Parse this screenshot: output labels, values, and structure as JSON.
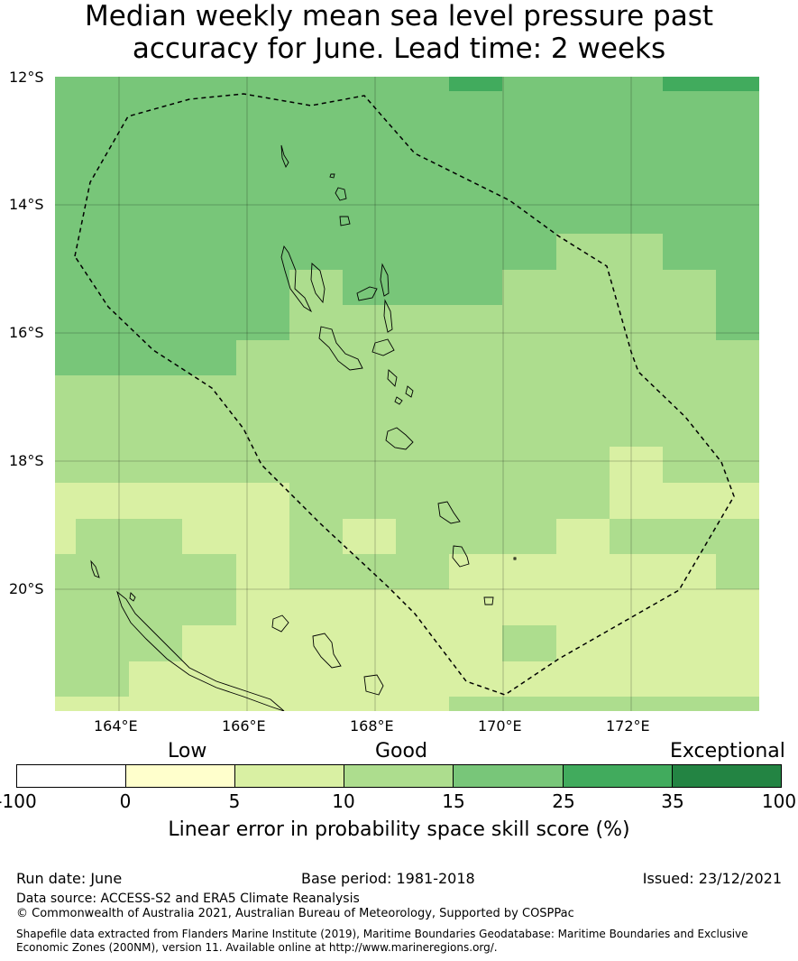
{
  "title": {
    "line1": "Median weekly mean sea level pressure past",
    "line2": "accuracy for June. Lead time: 2 weeks"
  },
  "map": {
    "lat_labels": [
      "12°S",
      "14°S",
      "16°S",
      "18°S",
      "20°S"
    ],
    "lon_labels": [
      "164°E",
      "166°E",
      "168°E",
      "170°E",
      "172°E"
    ],
    "boundary_style": "dashed",
    "grid": true
  },
  "legend": {
    "category_low": "Low",
    "category_good": "Good",
    "category_exceptional": "Exceptional",
    "ticks": [
      "-100",
      "0",
      "5",
      "10",
      "15",
      "25",
      "35",
      "100"
    ],
    "colors": [
      "#ffffff",
      "#ffffcc",
      "#d9f0a3",
      "#addd8e",
      "#78c679",
      "#41ab5d",
      "#238443"
    ],
    "caption": "Linear error in probability space skill score (%)"
  },
  "footer": {
    "run_date": "Run date: June",
    "base_period": "Base period: 1981-2018",
    "issued": "Issued: 23/12/2021",
    "data_source": "Data source: ACCESS-S2 and ERA5 Climate Reanalysis",
    "copyright": "© Commonwealth of Australia 2021, Australian Bureau of Meteorology, Supported by COSPPac",
    "shapefile_line1": "Shapefile data extracted from Flanders Marine Institute (2019), Maritime Boundaries Geodatabase: Maritime Boundaries and Exclusive",
    "shapefile_line2": "Economic Zones (200NM), version 11. Available online at http://www.marineregions.org/."
  }
}
